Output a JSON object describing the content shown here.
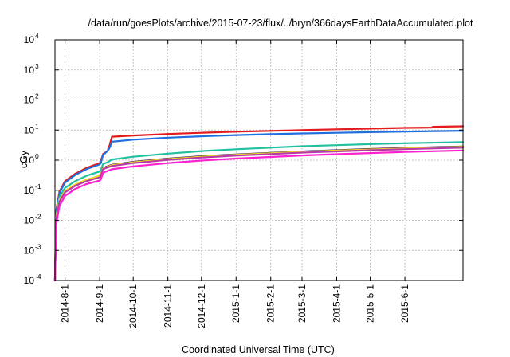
{
  "chart_data": {
    "type": "line",
    "title": "/data/run/goesPlots/archive/2015-07-23/flux/../bryn/366daysEarthDataAccumulated.plot",
    "xlabel": "Coordinated Universal Time (UTC)",
    "ylabel": "cGy",
    "y_scale": "log",
    "ylim": [
      0.0001,
      10000
    ],
    "xlim": [
      "2014-07-23",
      "2015-07-23"
    ],
    "grid": true,
    "legend": "none",
    "x_ticks": [
      "2014-08-01",
      "2014-09-01",
      "2014-10-01",
      "2014-11-01",
      "2014-12-01",
      "2015-01-01",
      "2015-02-01",
      "2015-03-01",
      "2015-04-01",
      "2015-05-01",
      "2015-06-01"
    ],
    "x_tick_labels": [
      "2014-8-1",
      "2014-9-1",
      "2014-10-1",
      "2014-11-1",
      "2014-12-1",
      "2015-1-1",
      "2015-2-1",
      "2015-3-1",
      "2015-4-1",
      "2015-5-1",
      "2015-6-1"
    ],
    "y_ticks": [
      {
        "base": "10",
        "exp": "-4"
      },
      {
        "base": "10",
        "exp": "-3"
      },
      {
        "base": "10",
        "exp": "-2"
      },
      {
        "base": "10",
        "exp": "-1"
      },
      {
        "base": "10",
        "exp": "0"
      },
      {
        "base": "10",
        "exp": "1"
      },
      {
        "base": "10",
        "exp": "2"
      },
      {
        "base": "10",
        "exp": "3"
      },
      {
        "base": "10",
        "exp": "4"
      }
    ],
    "series": [
      {
        "color": "#e41a1c",
        "points": [
          [
            "2014-07-23",
            0.0001
          ],
          [
            "2014-07-24",
            0.02
          ],
          [
            "2014-07-27",
            0.09
          ],
          [
            "2014-08-01",
            0.2
          ],
          [
            "2014-08-10",
            0.35
          ],
          [
            "2014-08-20",
            0.55
          ],
          [
            "2014-09-01",
            0.8
          ],
          [
            "2014-09-02",
            0.9
          ],
          [
            "2014-09-04",
            1.6
          ],
          [
            "2014-09-08",
            2.0
          ],
          [
            "2014-09-10",
            3.2
          ],
          [
            "2014-09-12",
            6.0
          ],
          [
            "2014-10-01",
            6.6
          ],
          [
            "2014-11-01",
            7.4
          ],
          [
            "2014-12-01",
            8.1
          ],
          [
            "2015-01-01",
            8.8
          ],
          [
            "2015-02-01",
            9.4
          ],
          [
            "2015-03-01",
            10.0
          ],
          [
            "2015-04-01",
            10.6
          ],
          [
            "2015-05-01",
            11.2
          ],
          [
            "2015-06-01",
            11.8
          ],
          [
            "2015-06-25",
            12.1
          ],
          [
            "2015-06-26",
            12.9
          ],
          [
            "2015-07-23",
            13.4
          ]
        ]
      },
      {
        "color": "#1f6fe0",
        "points": [
          [
            "2014-07-23",
            0.0001
          ],
          [
            "2014-07-24",
            0.018
          ],
          [
            "2014-07-27",
            0.08
          ],
          [
            "2014-08-01",
            0.18
          ],
          [
            "2014-08-10",
            0.32
          ],
          [
            "2014-08-20",
            0.5
          ],
          [
            "2014-09-01",
            0.72
          ],
          [
            "2014-09-02",
            0.8
          ],
          [
            "2014-09-04",
            1.5
          ],
          [
            "2014-09-08",
            2.0
          ],
          [
            "2014-09-10",
            2.6
          ],
          [
            "2014-09-12",
            4.1
          ],
          [
            "2014-10-01",
            4.8
          ],
          [
            "2014-11-01",
            5.6
          ],
          [
            "2014-12-01",
            6.2
          ],
          [
            "2015-01-01",
            6.8
          ],
          [
            "2015-02-01",
            7.3
          ],
          [
            "2015-03-01",
            7.7
          ],
          [
            "2015-04-01",
            8.1
          ],
          [
            "2015-05-01",
            8.5
          ],
          [
            "2015-06-01",
            8.9
          ],
          [
            "2015-07-23",
            9.5
          ]
        ]
      },
      {
        "color": "#20c0a0",
        "points": [
          [
            "2014-07-23",
            0.0001
          ],
          [
            "2014-07-24",
            0.014
          ],
          [
            "2014-07-27",
            0.06
          ],
          [
            "2014-08-01",
            0.12
          ],
          [
            "2014-08-10",
            0.2
          ],
          [
            "2014-08-20",
            0.3
          ],
          [
            "2014-09-01",
            0.42
          ],
          [
            "2014-09-02",
            0.46
          ],
          [
            "2014-09-04",
            0.75
          ],
          [
            "2014-09-08",
            0.85
          ],
          [
            "2014-09-12",
            1.05
          ],
          [
            "2014-10-01",
            1.3
          ],
          [
            "2014-11-01",
            1.65
          ],
          [
            "2014-12-01",
            2.0
          ],
          [
            "2015-01-01",
            2.3
          ],
          [
            "2015-02-01",
            2.6
          ],
          [
            "2015-03-01",
            2.9
          ],
          [
            "2015-04-01",
            3.15
          ],
          [
            "2015-05-01",
            3.4
          ],
          [
            "2015-06-01",
            3.65
          ],
          [
            "2015-07-23",
            4.0
          ]
        ]
      },
      {
        "color": "#3a1a5a",
        "points": [
          [
            "2014-07-23",
            0.0001
          ],
          [
            "2014-07-24",
            0.011
          ],
          [
            "2014-07-27",
            0.045
          ],
          [
            "2014-08-01",
            0.09
          ],
          [
            "2014-08-10",
            0.15
          ],
          [
            "2014-08-20",
            0.22
          ],
          [
            "2014-09-01",
            0.3
          ],
          [
            "2014-09-02",
            0.33
          ],
          [
            "2014-09-04",
            0.55
          ],
          [
            "2014-09-08",
            0.62
          ],
          [
            "2014-09-12",
            0.7
          ],
          [
            "2014-10-01",
            0.88
          ],
          [
            "2014-11-01",
            1.12
          ],
          [
            "2014-12-01",
            1.35
          ],
          [
            "2015-01-01",
            1.55
          ],
          [
            "2015-02-01",
            1.75
          ],
          [
            "2015-03-01",
            1.95
          ],
          [
            "2015-04-01",
            2.15
          ],
          [
            "2015-05-01",
            2.35
          ],
          [
            "2015-06-01",
            2.55
          ],
          [
            "2015-07-23",
            2.85
          ]
        ]
      },
      {
        "color": "#f0e020",
        "points": [
          [
            "2014-07-23",
            0.0001
          ],
          [
            "2014-07-24",
            0.012
          ],
          [
            "2014-07-27",
            0.048
          ],
          [
            "2014-08-01",
            0.095
          ],
          [
            "2014-08-10",
            0.155
          ],
          [
            "2014-08-20",
            0.225
          ],
          [
            "2014-09-01",
            0.3
          ],
          [
            "2014-09-02",
            0.33
          ],
          [
            "2014-09-04",
            0.53
          ],
          [
            "2014-09-08",
            0.6
          ],
          [
            "2014-09-12",
            0.68
          ],
          [
            "2014-10-01",
            0.85
          ],
          [
            "2014-11-01",
            1.08
          ],
          [
            "2014-12-01",
            1.3
          ],
          [
            "2015-01-01",
            1.5
          ],
          [
            "2015-02-01",
            1.7
          ],
          [
            "2015-03-01",
            1.9
          ],
          [
            "2015-04-01",
            2.08
          ],
          [
            "2015-05-01",
            2.26
          ],
          [
            "2015-06-01",
            2.45
          ],
          [
            "2015-07-23",
            2.75
          ]
        ]
      },
      {
        "color": "#b83aa8",
        "points": [
          [
            "2014-07-23",
            0.0001
          ],
          [
            "2014-07-24",
            0.01
          ],
          [
            "2014-07-27",
            0.042
          ],
          [
            "2014-08-01",
            0.085
          ],
          [
            "2014-08-10",
            0.14
          ],
          [
            "2014-08-20",
            0.2
          ],
          [
            "2014-09-01",
            0.27
          ],
          [
            "2014-09-02",
            0.3
          ],
          [
            "2014-09-04",
            0.5
          ],
          [
            "2014-09-08",
            0.57
          ],
          [
            "2014-09-12",
            0.64
          ],
          [
            "2014-10-01",
            0.8
          ],
          [
            "2014-11-01",
            1.02
          ],
          [
            "2014-12-01",
            1.22
          ],
          [
            "2015-01-01",
            1.42
          ],
          [
            "2015-02-01",
            1.6
          ],
          [
            "2015-03-01",
            1.78
          ],
          [
            "2015-04-01",
            1.96
          ],
          [
            "2015-05-01",
            2.14
          ],
          [
            "2015-06-01",
            2.32
          ],
          [
            "2015-07-23",
            2.6
          ]
        ]
      },
      {
        "color": "#ff20d0",
        "points": [
          [
            "2014-07-23",
            0.0001
          ],
          [
            "2014-07-24",
            0.007
          ],
          [
            "2014-07-27",
            0.03
          ],
          [
            "2014-08-01",
            0.065
          ],
          [
            "2014-08-10",
            0.11
          ],
          [
            "2014-08-20",
            0.16
          ],
          [
            "2014-09-01",
            0.21
          ],
          [
            "2014-09-02",
            0.23
          ],
          [
            "2014-09-04",
            0.38
          ],
          [
            "2014-09-08",
            0.44
          ],
          [
            "2014-09-12",
            0.5
          ],
          [
            "2014-10-01",
            0.62
          ],
          [
            "2014-11-01",
            0.8
          ],
          [
            "2014-12-01",
            0.97
          ],
          [
            "2015-01-01",
            1.13
          ],
          [
            "2015-02-01",
            1.28
          ],
          [
            "2015-03-01",
            1.43
          ],
          [
            "2015-04-01",
            1.58
          ],
          [
            "2015-05-01",
            1.72
          ],
          [
            "2015-06-01",
            1.87
          ],
          [
            "2015-07-23",
            2.1
          ]
        ]
      }
    ]
  }
}
